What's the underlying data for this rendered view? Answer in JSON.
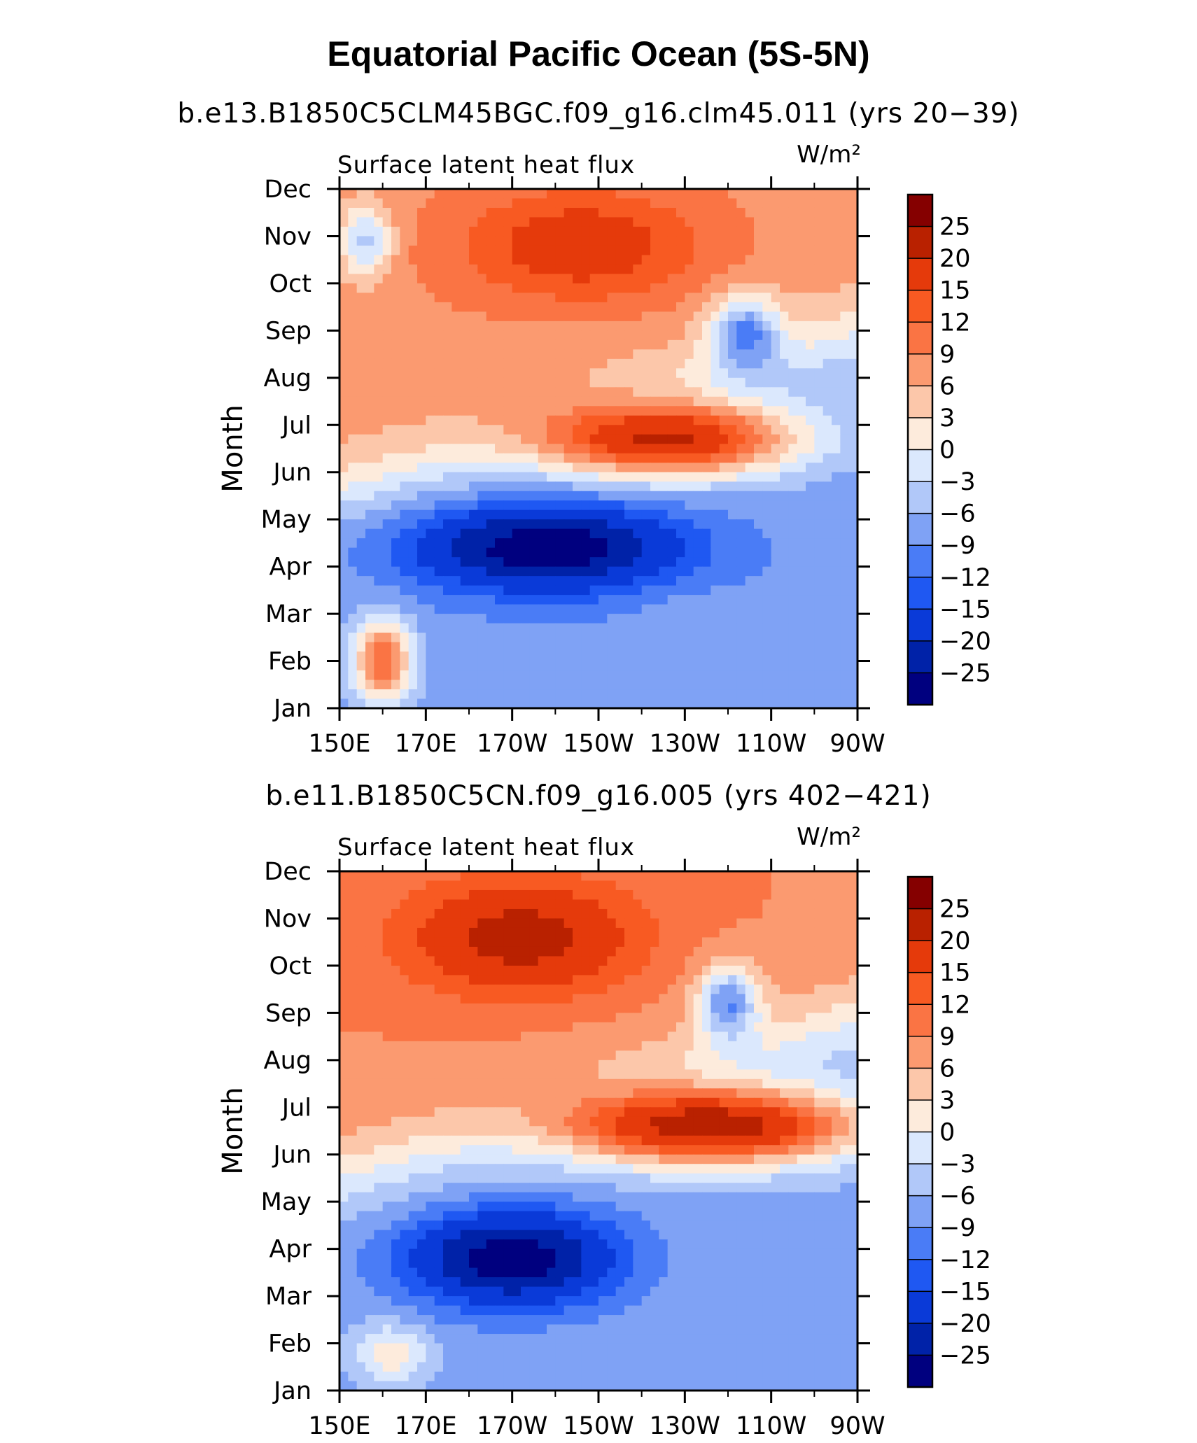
{
  "title": "Equatorial Pacific Ocean (5S-5N)",
  "colors": {
    "levels": [
      "#00007f",
      "#0022a8",
      "#0a3ad8",
      "#1f58f2",
      "#4a7cf6",
      "#7fa2f5",
      "#b1c8f9",
      "#dbe8fd",
      "#fdebdc",
      "#fcc7aa",
      "#fb9a70",
      "#fa7444",
      "#f85a22",
      "#e53a0b",
      "#b92100",
      "#850000"
    ]
  },
  "chart_data": [
    {
      "type": "heatmap",
      "title": "b.e13.B1850C5CLM45BGC.f09_g16.clm45.011 (yrs 20−39)",
      "variable_label": "Surface latent heat flux",
      "units_label": "W/m²",
      "ylabel": "Month",
      "xlabel": "",
      "x_ticks": [
        "150E",
        "170E",
        "170W",
        "150W",
        "130W",
        "110W",
        "90W"
      ],
      "y_ticks": [
        "Jan",
        "Feb",
        "Mar",
        "Apr",
        "May",
        "Jun",
        "Jul",
        "Aug",
        "Sep",
        "Oct",
        "Nov",
        "Dec"
      ],
      "colorbar_labels": [
        "25",
        "20",
        "15",
        "12",
        "9",
        "6",
        "3",
        "0",
        "−3",
        "−6",
        "−9",
        "−12",
        "−15",
        "−20",
        "−25"
      ],
      "level_boundaries": [
        -25,
        -20,
        -15,
        -12,
        -9,
        -6,
        -3,
        0,
        3,
        6,
        9,
        12,
        15,
        20,
        25
      ],
      "features": [
        {
          "lon": 160,
          "month": 2.0,
          "value": 16,
          "width_lon": 7,
          "width_month": 0.9
        },
        {
          "lon": 198,
          "month": 4.4,
          "value": -25,
          "width_lon": 30,
          "width_month": 0.9
        },
        {
          "lon": 232,
          "month": 2.9,
          "value": -3,
          "width_lon": 10,
          "width_month": 0.6
        },
        {
          "lon": 226,
          "month": 6.7,
          "value": 24,
          "width_lon": 30,
          "width_month": 0.8
        },
        {
          "lon": 206,
          "month": 10.8,
          "value": 14,
          "width_lon": 28,
          "width_month": 1.2
        },
        {
          "lon": 244,
          "month": 8.9,
          "value": -13,
          "width_lon": 8,
          "width_month": 0.8
        },
        {
          "lon": 156,
          "month": 10.9,
          "value": -8,
          "width_lon": 6,
          "width_month": 0.8
        }
      ]
    },
    {
      "type": "heatmap",
      "title": "b.e11.B1850C5CN.f09_g16.005 (yrs 402−421)",
      "variable_label": "Surface latent heat flux",
      "units_label": "W/m²",
      "ylabel": "Month",
      "xlabel": "",
      "x_ticks": [
        "150E",
        "170E",
        "170W",
        "150W",
        "130W",
        "110W",
        "90W"
      ],
      "y_ticks": [
        "Jan",
        "Feb",
        "Mar",
        "Apr",
        "May",
        "Jun",
        "Jul",
        "Aug",
        "Sep",
        "Oct",
        "Nov",
        "Dec"
      ],
      "colorbar_labels": [
        "25",
        "20",
        "15",
        "12",
        "9",
        "6",
        "3",
        "0",
        "−3",
        "−6",
        "−9",
        "−12",
        "−15",
        "−20",
        "−25"
      ],
      "level_boundaries": [
        -25,
        -20,
        -15,
        -12,
        -9,
        -6,
        -3,
        0,
        3,
        6,
        9,
        12,
        15,
        20,
        25
      ],
      "features": [
        {
          "lon": 162,
          "month": 1.8,
          "value": 6,
          "width_lon": 8,
          "width_month": 0.6
        },
        {
          "lon": 190,
          "month": 3.8,
          "value": -25,
          "width_lon": 24,
          "width_month": 1.0
        },
        {
          "lon": 242,
          "month": 2.9,
          "value": -3,
          "width_lon": 8,
          "width_month": 0.6
        },
        {
          "lon": 236,
          "month": 6.6,
          "value": 27,
          "width_lon": 34,
          "width_month": 0.8
        },
        {
          "lon": 192,
          "month": 10.6,
          "value": 18,
          "width_lon": 26,
          "width_month": 1.2
        },
        {
          "lon": 240,
          "month": 9.2,
          "value": -13,
          "width_lon": 7,
          "width_month": 0.8
        }
      ]
    }
  ]
}
